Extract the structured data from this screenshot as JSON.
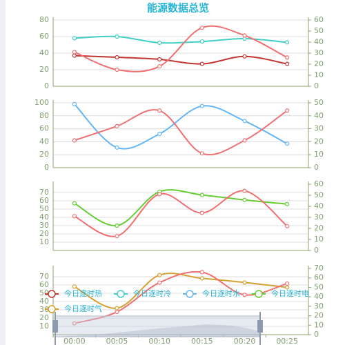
{
  "chart_data": {
    "type": "line",
    "title": "能源数据总览",
    "categories": [
      "00:00",
      "00:05",
      "00:10",
      "00:15",
      "00:20",
      "00:25"
    ],
    "panels": [
      {
        "ylim": [
          0,
          80
        ],
        "yticks": [
          0,
          20,
          40,
          60,
          80
        ],
        "y2lim": [
          0,
          60
        ],
        "y2ticks": [
          0,
          10,
          20,
          30,
          40,
          50,
          60
        ],
        "series": [
          {
            "name": "今日逐时热",
            "color": "#c23531",
            "values": [
              37,
              35,
              32.5,
              27,
              36,
              27
            ]
          },
          {
            "name": "今日逐时冷",
            "color": "#3fcfc4",
            "values": [
              58,
              60,
              52.5,
              54,
              57.5,
              53
            ]
          },
          {
            "color": "#f07070",
            "axis": "y2",
            "values": [
              31,
              15,
              18,
              53,
              46,
              26
            ]
          }
        ]
      },
      {
        "ylim": [
          0,
          100
        ],
        "yticks": [
          0,
          20,
          40,
          60,
          80,
          100
        ],
        "y2lim": [
          0,
          50
        ],
        "y2ticks": [
          0,
          10,
          20,
          30,
          40,
          50
        ],
        "series": [
          {
            "name": "今日逐时水",
            "color": "#64b5f6",
            "values": [
              98,
              31,
              52,
              95,
              72,
              37
            ]
          },
          {
            "color": "#f07070",
            "axis": "y2",
            "values": [
              21,
              32,
              44,
              11,
              21,
              44
            ]
          }
        ]
      },
      {
        "ylim": [
          0,
          80
        ],
        "yticks": [
          10,
          20,
          30,
          40,
          50,
          60,
          70
        ],
        "y2lim": [
          0,
          60
        ],
        "y2ticks": [
          0,
          10,
          20,
          30,
          40,
          50,
          60
        ],
        "series": [
          {
            "name": "今日逐时电",
            "color": "#66cc33",
            "values": [
              57,
              30,
              71,
              67,
              61,
              56
            ]
          },
          {
            "color": "#f07070",
            "axis": "y2",
            "values": [
              31,
              13,
              51,
              34,
              54,
              22
            ]
          }
        ]
      },
      {
        "ylim": [
          0,
          80
        ],
        "yticks": [
          10,
          20,
          30,
          40,
          50,
          60,
          70
        ],
        "y2lim": [
          0,
          70
        ],
        "y2ticks": [
          0,
          10,
          20,
          30,
          40,
          50,
          60,
          70
        ],
        "series": [
          {
            "name": "今日逐时气",
            "color": "#d4a030",
            "values": [
              58,
              32,
              72,
              68,
              63,
              57
            ]
          },
          {
            "color": "#f07070",
            "axis": "y2",
            "values": [
              12,
              24,
              55,
              66,
              42,
              54
            ]
          }
        ]
      }
    ]
  }
}
